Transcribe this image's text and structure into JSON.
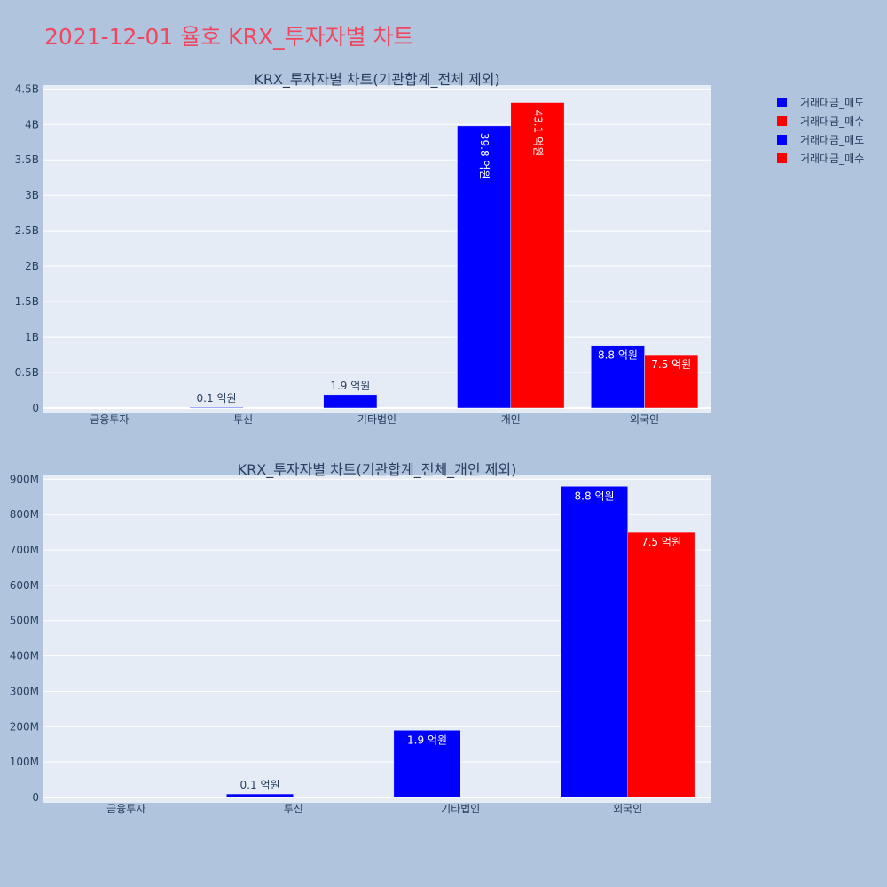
{
  "title": "2021-12-01 율호 KRX_투자자별 차트",
  "legend": [
    {
      "label": "거래대금_매도",
      "color": "#0000ff"
    },
    {
      "label": "거래대금_매수",
      "color": "#ff0000"
    },
    {
      "label": "거래대금_매도",
      "color": "#0000ff"
    },
    {
      "label": "거래대금_매수",
      "color": "#ff0000"
    }
  ],
  "chart_data": [
    {
      "type": "bar",
      "title": "KRX_투자자별 차트(기관합계_전체 제외)",
      "categories": [
        "금융투자",
        "투신",
        "기타법인",
        "개인",
        "외국인"
      ],
      "ylim": [
        0,
        4500000000
      ],
      "yticks": [
        0,
        500000000,
        1000000000,
        1500000000,
        2000000000,
        2500000000,
        3000000000,
        3500000000,
        4000000000,
        4500000000
      ],
      "ytick_labels": [
        "0",
        "0.5B",
        "1B",
        "1.5B",
        "2B",
        "2.5B",
        "3B",
        "3.5B",
        "4B",
        "4.5B"
      ],
      "series": [
        {
          "name": "거래대금_매도",
          "color": "#0000ff",
          "values": [
            0,
            10000000,
            190000000,
            3980000000,
            880000000
          ],
          "labels": [
            "",
            "0.1 억원",
            "1.9 억원",
            "39.8 억원",
            "8.8 억원"
          ]
        },
        {
          "name": "거래대금_매수",
          "color": "#ff0000",
          "values": [
            0,
            0,
            0,
            4310000000,
            750000000
          ],
          "labels": [
            "",
            "",
            "",
            "43.1 억원",
            "7.5 억원"
          ]
        }
      ],
      "grid": true
    },
    {
      "type": "bar",
      "title": "KRX_투자자별 차트(기관합계_전체_개인 제외)",
      "categories": [
        "금융투자",
        "투신",
        "기타법인",
        "외국인"
      ],
      "ylim": [
        0,
        900000000
      ],
      "yticks": [
        0,
        100000000,
        200000000,
        300000000,
        400000000,
        500000000,
        600000000,
        700000000,
        800000000,
        900000000
      ],
      "ytick_labels": [
        "0",
        "100M",
        "200M",
        "300M",
        "400M",
        "500M",
        "600M",
        "700M",
        "800M",
        "900M"
      ],
      "series": [
        {
          "name": "거래대금_매도",
          "color": "#0000ff",
          "values": [
            0,
            10000000,
            190000000,
            880000000
          ],
          "labels": [
            "",
            "0.1 억원",
            "1.9 억원",
            "8.8 억원"
          ]
        },
        {
          "name": "거래대금_매수",
          "color": "#ff0000",
          "values": [
            0,
            0,
            0,
            750000000
          ],
          "labels": [
            "",
            "",
            "",
            "7.5 억원"
          ]
        }
      ],
      "grid": true
    }
  ]
}
